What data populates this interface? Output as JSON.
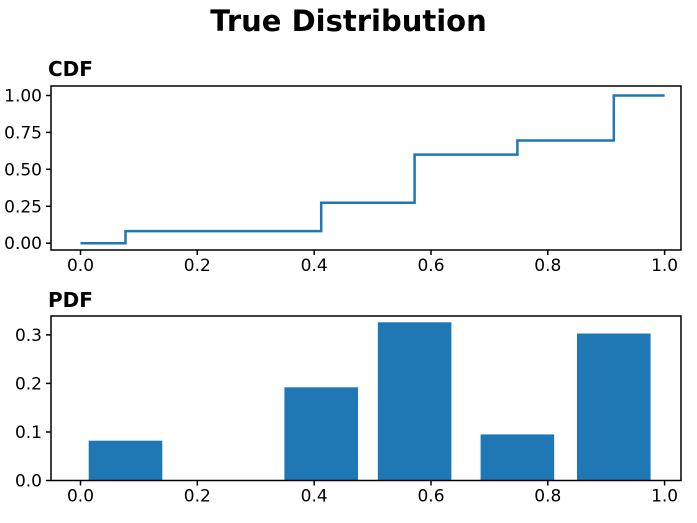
{
  "figure": {
    "title": "True Distribution",
    "background_color": "#ffffff",
    "accent_color": "#1f77b4",
    "axis_color": "#000000",
    "text_color": "#000000"
  },
  "chart_data": [
    {
      "type": "line",
      "title": "CDF",
      "line_style": "steps-post",
      "color": "#1f77b4",
      "x": [
        0.0,
        0.077,
        0.412,
        0.572,
        0.748,
        0.913,
        1.0
      ],
      "y": [
        0.0,
        0.082,
        0.274,
        0.6,
        0.695,
        1.0,
        1.0
      ],
      "xlim": [
        -0.0505,
        1.028
      ],
      "ylim": [
        -0.046,
        1.064
      ],
      "xticks": {
        "values": [
          0.0,
          0.2,
          0.4,
          0.6,
          0.8,
          1.0
        ],
        "labels": [
          "0.0",
          "0.2",
          "0.4",
          "0.6",
          "0.8",
          "1.0"
        ]
      },
      "yticks": {
        "values": [
          0.0,
          0.25,
          0.5,
          0.75,
          1.0
        ],
        "labels": [
          "0.00",
          "0.25",
          "0.50",
          "0.75",
          "1.00"
        ]
      },
      "grid": false,
      "legend": null
    },
    {
      "type": "bar",
      "title": "PDF",
      "color": "#1f77b4",
      "x": [
        0.077,
        0.412,
        0.572,
        0.748,
        0.913
      ],
      "values": [
        0.082,
        0.192,
        0.326,
        0.095,
        0.303
      ],
      "bar_width": 0.126,
      "xlim": [
        -0.0505,
        1.028
      ],
      "ylim": [
        0,
        0.339
      ],
      "xticks": {
        "values": [
          0.0,
          0.2,
          0.4,
          0.6,
          0.8,
          1.0
        ],
        "labels": [
          "0.0",
          "0.2",
          "0.4",
          "0.6",
          "0.8",
          "1.0"
        ]
      },
      "yticks": {
        "values": [
          0.0,
          0.1,
          0.2,
          0.3
        ],
        "labels": [
          "0.0",
          "0.1",
          "0.2",
          "0.3"
        ]
      },
      "grid": false,
      "legend": null
    }
  ]
}
